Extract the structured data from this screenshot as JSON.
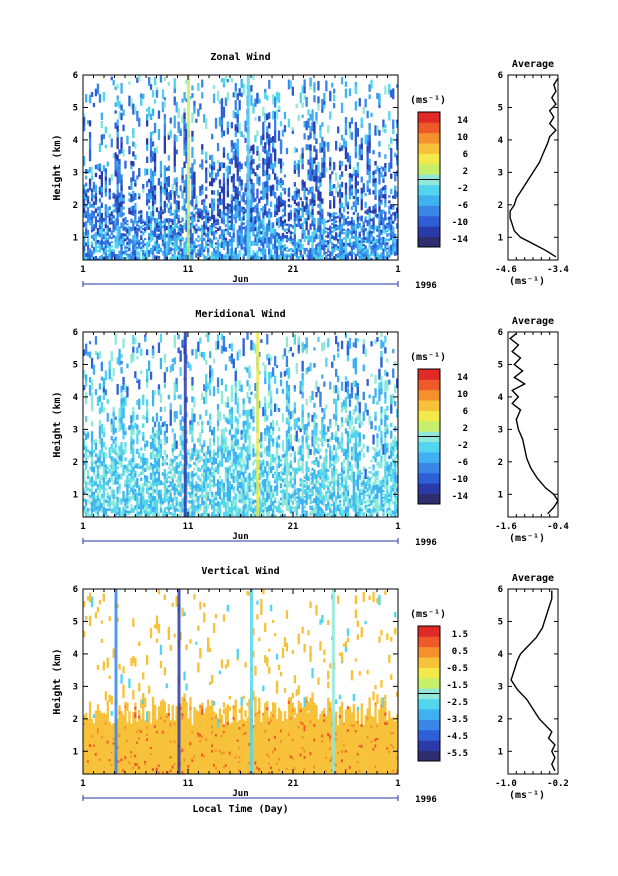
{
  "chart_data": [
    {
      "type": "heatmap",
      "title": "Zonal Wind",
      "ylabel": "Height (km)",
      "units_label": "(ms⁻¹)",
      "x_ticks": [
        "1",
        "11",
        "21",
        "1"
      ],
      "month_label": "Jun",
      "year_label": "1996",
      "ylim": [
        0.3,
        6.0
      ],
      "y_ticks": [
        1,
        2,
        3,
        4,
        5,
        6
      ],
      "colorbar_ticks": [
        "14",
        "10",
        "6",
        "2",
        "-2",
        "-6",
        "-10",
        "-14"
      ],
      "colorbar_range": [
        -16,
        16
      ],
      "avg": {
        "title": "Average",
        "xlabel": "(ms⁻¹)",
        "xlim": [
          -4.6,
          -3.4
        ],
        "x_ticks": [
          "-4.6",
          "-3.4"
        ],
        "y": [
          0.4,
          0.6,
          0.8,
          1.0,
          1.2,
          1.4,
          1.6,
          1.8,
          2.0,
          2.2,
          2.5,
          2.8,
          3.0,
          3.3,
          3.6,
          3.9,
          4.1,
          4.3,
          4.5,
          4.7,
          4.9,
          5.1,
          5.3,
          5.5,
          5.7,
          5.9
        ],
        "x": [
          -3.45,
          -3.7,
          -4.0,
          -4.3,
          -4.45,
          -4.5,
          -4.55,
          -4.55,
          -4.45,
          -4.4,
          -4.25,
          -4.1,
          -4.0,
          -3.85,
          -3.75,
          -3.65,
          -3.6,
          -3.45,
          -3.6,
          -3.5,
          -3.6,
          -3.45,
          -3.55,
          -3.45,
          -3.5,
          -3.4
        ]
      }
    },
    {
      "type": "heatmap",
      "title": "Meridional Wind",
      "ylabel": "Height (km)",
      "units_label": "(ms⁻¹)",
      "x_ticks": [
        "1",
        "11",
        "21",
        "1"
      ],
      "month_label": "Jun",
      "year_label": "1996",
      "ylim": [
        0.3,
        6.0
      ],
      "y_ticks": [
        1,
        2,
        3,
        4,
        5,
        6
      ],
      "colorbar_ticks": [
        "14",
        "10",
        "6",
        "2",
        "-2",
        "-6",
        "-10",
        "-14"
      ],
      "colorbar_range": [
        -16,
        16
      ],
      "avg": {
        "title": "Average",
        "xlabel": "(ms⁻¹)",
        "xlim": [
          -1.6,
          -0.4
        ],
        "x_ticks": [
          "-1.6",
          "-0.4"
        ],
        "y": [
          0.4,
          0.6,
          0.8,
          1.0,
          1.2,
          1.5,
          1.8,
          2.1,
          2.4,
          2.7,
          3.0,
          3.3,
          3.6,
          3.8,
          4.0,
          4.2,
          4.4,
          4.6,
          4.8,
          5.0,
          5.2,
          5.4,
          5.6,
          5.8,
          5.95
        ],
        "x": [
          -0.65,
          -0.5,
          -0.4,
          -0.5,
          -0.7,
          -0.9,
          -1.05,
          -1.15,
          -1.2,
          -1.25,
          -1.35,
          -1.4,
          -1.3,
          -1.5,
          -1.35,
          -1.5,
          -1.2,
          -1.45,
          -1.25,
          -1.45,
          -1.3,
          -1.5,
          -1.35,
          -1.55,
          -1.4
        ]
      }
    },
    {
      "type": "heatmap",
      "title": "Vertical Wind",
      "ylabel": "Height (km)",
      "units_label": "(ms⁻¹)",
      "x_ticks": [
        "1",
        "11",
        "21",
        "1"
      ],
      "month_label": "Jun",
      "year_label": "1996",
      "xlabel": "Local Time (Day)",
      "ylim": [
        0.3,
        6.0
      ],
      "y_ticks": [
        1,
        2,
        3,
        4,
        5,
        6
      ],
      "colorbar_ticks": [
        "1.5",
        "0.5",
        "-0.5",
        "-1.5",
        "-2.5",
        "-3.5",
        "-4.5",
        "-5.5"
      ],
      "colorbar_range": [
        -6,
        2
      ],
      "avg": {
        "title": "Average",
        "xlabel": "(ms⁻¹)",
        "xlim": [
          -1.0,
          -0.2
        ],
        "x_ticks": [
          "-1.0",
          "-0.2"
        ],
        "y": [
          0.4,
          0.6,
          0.8,
          1.0,
          1.2,
          1.4,
          1.6,
          1.8,
          2.0,
          2.3,
          2.6,
          2.9,
          3.2,
          3.5,
          3.8,
          4.0,
          4.2,
          4.5,
          4.8,
          5.1,
          5.4,
          5.7,
          5.95
        ],
        "x": [
          -0.25,
          -0.3,
          -0.25,
          -0.3,
          -0.25,
          -0.35,
          -0.3,
          -0.4,
          -0.5,
          -0.6,
          -0.7,
          -0.85,
          -0.95,
          -0.9,
          -0.85,
          -0.8,
          -0.7,
          -0.55,
          -0.45,
          -0.4,
          -0.35,
          -0.3,
          -0.3
        ]
      }
    }
  ],
  "colors": {
    "wind_scale": [
      "#2e2e6e",
      "#2a3aa8",
      "#2f5fd6",
      "#3a86e8",
      "#3fb0f0",
      "#52d6ef",
      "#8fe8d8",
      "#c6ef6a",
      "#f2ea4a",
      "#f7c23a",
      "#f5902e",
      "#ef5a2a",
      "#e02a28"
    ],
    "vertical_scale": [
      "#2e2e6e",
      "#2a3aa8",
      "#2f5fd6",
      "#3a86e8",
      "#3fb0f0",
      "#52d6ef",
      "#8fe8d8",
      "#c6ef6a",
      "#f2ea4a",
      "#f7c23a",
      "#f5902e",
      "#ef5a2a",
      "#e02a28"
    ]
  }
}
